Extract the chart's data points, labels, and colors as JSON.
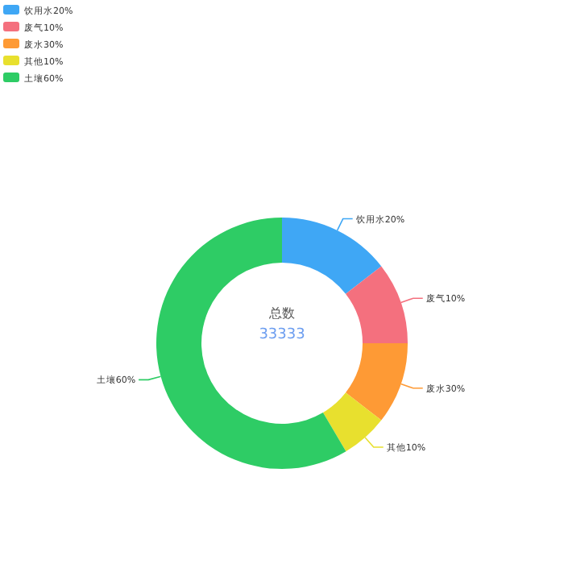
{
  "chart_data": {
    "type": "donut",
    "categories": [
      "饮用水20%",
      "废气10%",
      "废水30%",
      "其他10%",
      "土壤60%"
    ],
    "values": [
      14.5,
      10.5,
      10.5,
      6,
      58.5
    ],
    "colors": [
      "#3fa7f5",
      "#f4707e",
      "#fe9a35",
      "#e8e02e",
      "#2ecc65"
    ],
    "annotations": [
      "总数",
      "33333"
    ],
    "legend": "top left"
  }
}
